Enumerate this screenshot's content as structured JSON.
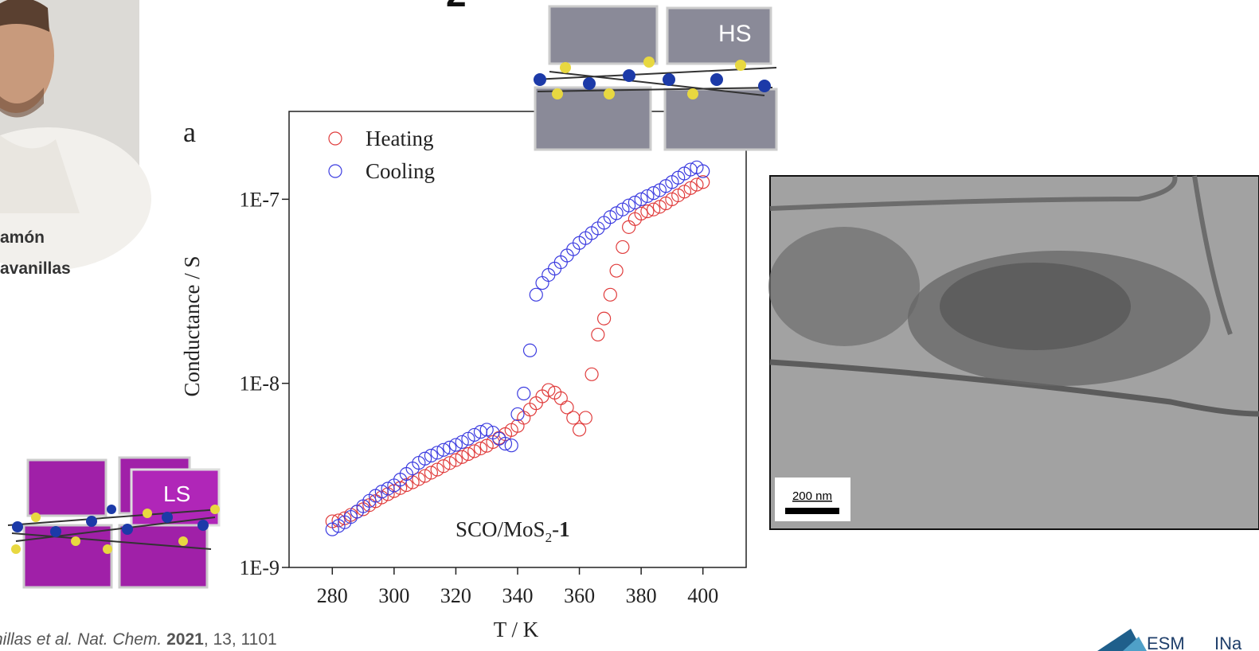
{
  "slide": {
    "title_fragment": "2",
    "name_lines": [
      "amón",
      "avanillas"
    ],
    "hs_label": "HS",
    "ls_label": "LS",
    "scale_bar": "200 nm",
    "citation": {
      "authors": "nillas et al. ",
      "journal": "Nat. Chem.",
      "year": "2021",
      "rest": ", 13, 1101"
    },
    "logo": [
      "ESM",
      "INa"
    ]
  },
  "chart_data": {
    "type": "scatter",
    "panel_label": "a",
    "x_label": "T / K",
    "y_label": "Conductance / S",
    "annotation": {
      "text": "SCO/MoS",
      "sub": "2",
      "dash": "-",
      "bold": "1"
    },
    "log_y": true,
    "legend": "top-left",
    "xlim": [
      266,
      414
    ],
    "ylim": [
      1e-09,
      3e-07
    ],
    "xticks": [
      280,
      300,
      320,
      340,
      360,
      380,
      400
    ],
    "yticks": [
      {
        "value": 1e-09,
        "label": "1E-9"
      },
      {
        "value": 1e-08,
        "label": "1E-8"
      },
      {
        "value": 1e-07,
        "label": "1E-7"
      }
    ],
    "x": [
      280,
      282,
      284,
      286,
      288,
      290,
      292,
      294,
      296,
      298,
      300,
      302,
      304,
      306,
      308,
      310,
      312,
      314,
      316,
      318,
      320,
      322,
      324,
      326,
      328,
      330,
      332,
      334,
      336,
      338,
      340,
      342,
      344,
      346,
      348,
      350,
      352,
      354,
      356,
      358,
      360,
      362,
      364,
      366,
      368,
      370,
      372,
      374,
      376,
      378,
      380,
      382,
      384,
      386,
      388,
      390,
      392,
      394,
      396,
      398,
      400
    ],
    "series": [
      {
        "name": "Heating",
        "color": "#e03c3c",
        "values": [
          1.78e-09,
          1.8e-09,
          1.85e-09,
          1.93e-09,
          2.01e-09,
          2.07e-09,
          2.18e-09,
          2.29e-09,
          2.4e-09,
          2.5e-09,
          2.6e-09,
          2.7e-09,
          2.8e-09,
          2.9e-09,
          3.02e-09,
          3.14e-09,
          3.27e-09,
          3.4e-09,
          3.55e-09,
          3.69e-09,
          3.83e-09,
          3.98e-09,
          4.13e-09,
          4.28e-09,
          4.43e-09,
          4.58e-09,
          4.8e-09,
          5.05e-09,
          5.3e-09,
          5.58e-09,
          5.87e-09,
          6.5e-09,
          7.2e-09,
          7.8e-09,
          8.5e-09,
          9.2e-09,
          8.9e-09,
          8.3e-09,
          7.4e-09,
          6.5e-09,
          5.6e-09,
          6.5e-09,
          1.12e-08,
          1.84e-08,
          2.25e-08,
          3.03e-08,
          4.09e-08,
          5.5e-08,
          7.06e-08,
          7.8e-08,
          8.36e-08,
          8.6e-08,
          8.8e-08,
          9.1e-08,
          9.5e-08,
          1e-07,
          1.05e-07,
          1.1e-07,
          1.15e-07,
          1.2e-07,
          1.24e-07
        ]
      },
      {
        "name": "Cooling",
        "color": "#3c3ce0",
        "values": [
          1.61e-09,
          1.68e-09,
          1.76e-09,
          1.88e-09,
          2.01e-09,
          2.15e-09,
          2.3e-09,
          2.45e-09,
          2.58e-09,
          2.68e-09,
          2.79e-09,
          3e-09,
          3.22e-09,
          3.45e-09,
          3.7e-09,
          3.9e-09,
          4.05e-09,
          4.2e-09,
          4.35e-09,
          4.48e-09,
          4.63e-09,
          4.8e-09,
          5e-09,
          5.25e-09,
          5.45e-09,
          5.6e-09,
          5.4e-09,
          5e-09,
          4.7e-09,
          4.6e-09,
          6.8e-09,
          8.8e-09,
          1.51e-08,
          3.03e-08,
          3.51e-08,
          3.88e-08,
          4.2e-08,
          4.55e-08,
          4.95e-08,
          5.35e-08,
          5.79e-08,
          6.15e-08,
          6.55e-08,
          6.95e-08,
          7.45e-08,
          8e-08,
          8.4e-08,
          8.8e-08,
          9.25e-08,
          9.6e-08,
          1e-07,
          1.04e-07,
          1.08e-07,
          1.12e-07,
          1.18e-07,
          1.24e-07,
          1.31e-07,
          1.38e-07,
          1.45e-07,
          1.49e-07,
          1.42e-07
        ]
      }
    ]
  }
}
